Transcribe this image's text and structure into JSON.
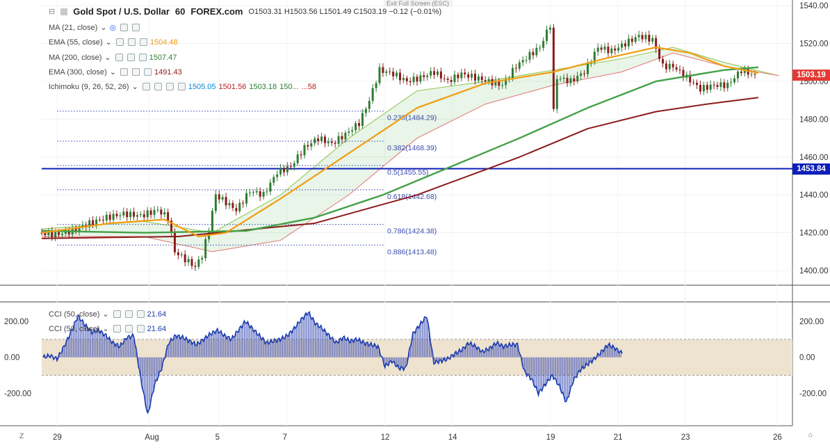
{
  "header": {
    "symbol": "Gold Spot / U.S. Dollar",
    "interval": "60",
    "exchange": "FOREX.com",
    "ohlc": "O1503.31  H1503.56  L1501.49  C1503.19  −0.12 (−0.01%)",
    "exit_fullscreen": "Exit Full Screen (ESC)"
  },
  "legends": {
    "ma21": {
      "label": "MA (21, close)",
      "value": ""
    },
    "ema55": {
      "label": "EMA (55, close)",
      "value": "1504.48",
      "color": "#f39c12"
    },
    "ma200": {
      "label": "MA (200, close)",
      "value": "1507.47",
      "color": "#43a047"
    },
    "ema300": {
      "label": "EMA (300, close)",
      "value": "1491.43",
      "color": "#8b1a1a"
    },
    "ichimoku": {
      "label": "Ichimoku (9, 26, 52, 26)",
      "v1": "1505.05",
      "v2": "1501.56",
      "v3": "1503.18",
      "v4": "150...",
      "v5": "...58"
    },
    "cci1": {
      "label": "CCI (50, close)",
      "value": "21.64",
      "color": "#1a3bb0"
    },
    "cci2": {
      "label": "CCI (50, close)",
      "value": "21.64",
      "color": "#1a3bb0"
    }
  },
  "price_tags": {
    "last": {
      "value": "1503.19",
      "color": "#e53935"
    },
    "line": {
      "value": "1453.84",
      "color": "#0d1fb8"
    }
  },
  "corner": {
    "left": "Z",
    "right": "⌂"
  },
  "chart_data": [
    {
      "type": "line",
      "title": "Gold Spot / U.S. Dollar, 60, FOREX.com",
      "x_ticks": [
        "29",
        "Aug",
        "5",
        "7",
        "12",
        "14",
        "19",
        "21",
        "23",
        "26"
      ],
      "y_ticks": [
        1400,
        1420,
        1440,
        1460,
        1480,
        1500,
        1520,
        1540
      ],
      "ylim": [
        1393,
        1543
      ],
      "horizontal_line": 1453.84,
      "fib_levels": [
        {
          "ratio": "0.236",
          "price": 1484.29,
          "label": "0.236(1484.29)"
        },
        {
          "ratio": "0.382",
          "price": 1468.39,
          "label": "0.382(1468.39)"
        },
        {
          "ratio": "0.5",
          "price": 1455.55,
          "label": "0.5(1455.55)"
        },
        {
          "ratio": "0.618",
          "price": 1442.68,
          "label": "0.618(1442.68)"
        },
        {
          "ratio": "0.786",
          "price": 1424.38,
          "label": "0.786(1424.38)"
        },
        {
          "ratio": "0.886",
          "price": 1413.48,
          "label": "0.886(1413.48)"
        }
      ],
      "close_path": [
        [
          0,
          1420
        ],
        [
          5,
          1419
        ],
        [
          10,
          1421
        ],
        [
          15,
          1425
        ],
        [
          20,
          1428
        ],
        [
          25,
          1430
        ],
        [
          30,
          1429
        ],
        [
          35,
          1432
        ],
        [
          38,
          1428
        ],
        [
          40,
          1410
        ],
        [
          43,
          1406
        ],
        [
          46,
          1402
        ],
        [
          48,
          1408
        ],
        [
          50,
          1422
        ],
        [
          52,
          1440
        ],
        [
          55,
          1436
        ],
        [
          58,
          1432
        ],
        [
          62,
          1442
        ],
        [
          66,
          1440
        ],
        [
          70,
          1452
        ],
        [
          74,
          1455
        ],
        [
          78,
          1465
        ],
        [
          82,
          1470
        ],
        [
          86,
          1467
        ],
        [
          90,
          1472
        ],
        [
          94,
          1478
        ],
        [
          97,
          1490
        ],
        [
          100,
          1506
        ],
        [
          104,
          1504
        ],
        [
          108,
          1500
        ],
        [
          112,
          1502
        ],
        [
          116,
          1505
        ],
        [
          120,
          1500
        ],
        [
          124,
          1504
        ],
        [
          128,
          1502
        ],
        [
          132,
          1500
        ],
        [
          136,
          1498
        ],
        [
          140,
          1508
        ],
        [
          144,
          1514
        ],
        [
          147,
          1518
        ],
        [
          150,
          1530
        ],
        [
          151,
          1484
        ],
        [
          152,
          1502
        ],
        [
          156,
          1500
        ],
        [
          160,
          1505
        ],
        [
          164,
          1518
        ],
        [
          168,
          1516
        ],
        [
          172,
          1520
        ],
        [
          176,
          1524
        ],
        [
          180,
          1522
        ],
        [
          183,
          1508
        ],
        [
          186,
          1508
        ],
        [
          190,
          1502
        ],
        [
          194,
          1496
        ],
        [
          198,
          1498
        ],
        [
          202,
          1498
        ],
        [
          206,
          1506
        ],
        [
          210,
          1503
        ]
      ],
      "ema55_path": [
        [
          0,
          1420
        ],
        [
          20,
          1425
        ],
        [
          36,
          1427
        ],
        [
          46,
          1418
        ],
        [
          54,
          1420
        ],
        [
          70,
          1438
        ],
        [
          90,
          1462
        ],
        [
          110,
          1486
        ],
        [
          130,
          1499
        ],
        [
          150,
          1505
        ],
        [
          165,
          1512
        ],
        [
          180,
          1518
        ],
        [
          190,
          1515
        ],
        [
          200,
          1508
        ],
        [
          210,
          1504.48
        ]
      ],
      "ma200_path": [
        [
          0,
          1421
        ],
        [
          30,
          1420
        ],
        [
          60,
          1421
        ],
        [
          80,
          1428
        ],
        [
          100,
          1440
        ],
        [
          120,
          1455
        ],
        [
          140,
          1470
        ],
        [
          160,
          1486
        ],
        [
          180,
          1500
        ],
        [
          200,
          1506
        ],
        [
          210,
          1507.47
        ]
      ],
      "ema300_path": [
        [
          0,
          1417
        ],
        [
          40,
          1418
        ],
        [
          80,
          1425
        ],
        [
          110,
          1440
        ],
        [
          140,
          1460
        ],
        [
          160,
          1475
        ],
        [
          180,
          1484
        ],
        [
          195,
          1488
        ],
        [
          210,
          1491.43
        ]
      ],
      "cloud_a": [
        [
          0,
          1422
        ],
        [
          30,
          1426
        ],
        [
          50,
          1420
        ],
        [
          70,
          1440
        ],
        [
          90,
          1470
        ],
        [
          110,
          1495
        ],
        [
          130,
          1500
        ],
        [
          150,
          1506
        ],
        [
          170,
          1512
        ],
        [
          185,
          1518
        ],
        [
          200,
          1510
        ],
        [
          216,
          1503
        ]
      ],
      "cloud_b": [
        [
          0,
          1418
        ],
        [
          30,
          1418
        ],
        [
          50,
          1410
        ],
        [
          70,
          1416
        ],
        [
          90,
          1440
        ],
        [
          110,
          1470
        ],
        [
          130,
          1488
        ],
        [
          150,
          1498
        ],
        [
          170,
          1505
        ],
        [
          185,
          1515
        ],
        [
          200,
          1508
        ],
        [
          216,
          1503
        ]
      ]
    },
    {
      "type": "line",
      "title": "CCI (50, close)",
      "y_ticks": [
        -200,
        0,
        200
      ],
      "ylim": [
        -380,
        300
      ],
      "band": [
        -100,
        100
      ],
      "series": [
        {
          "name": "CCI (50, close)",
          "values": [
            0,
            10,
            -10,
            60,
            140,
            230,
            180,
            140,
            150,
            120,
            80,
            60,
            110,
            120,
            -120,
            -320,
            -150,
            -60,
            80,
            120,
            110,
            90,
            70,
            100,
            130,
            150,
            120,
            100,
            150,
            200,
            160,
            120,
            80,
            90,
            100,
            120,
            160,
            210,
            250,
            190,
            160,
            120,
            80,
            110,
            90,
            100,
            80,
            70,
            60,
            -50,
            -20,
            -60,
            -60,
            130,
            180,
            230,
            -30,
            -20,
            -10,
            20,
            40,
            80,
            60,
            30,
            50,
            80,
            60,
            70,
            70,
            -80,
            -120,
            -200,
            -150,
            -100,
            -160,
            -250,
            -130,
            -70,
            -40,
            -10,
            30,
            70,
            50,
            21.64
          ]
        }
      ]
    }
  ]
}
